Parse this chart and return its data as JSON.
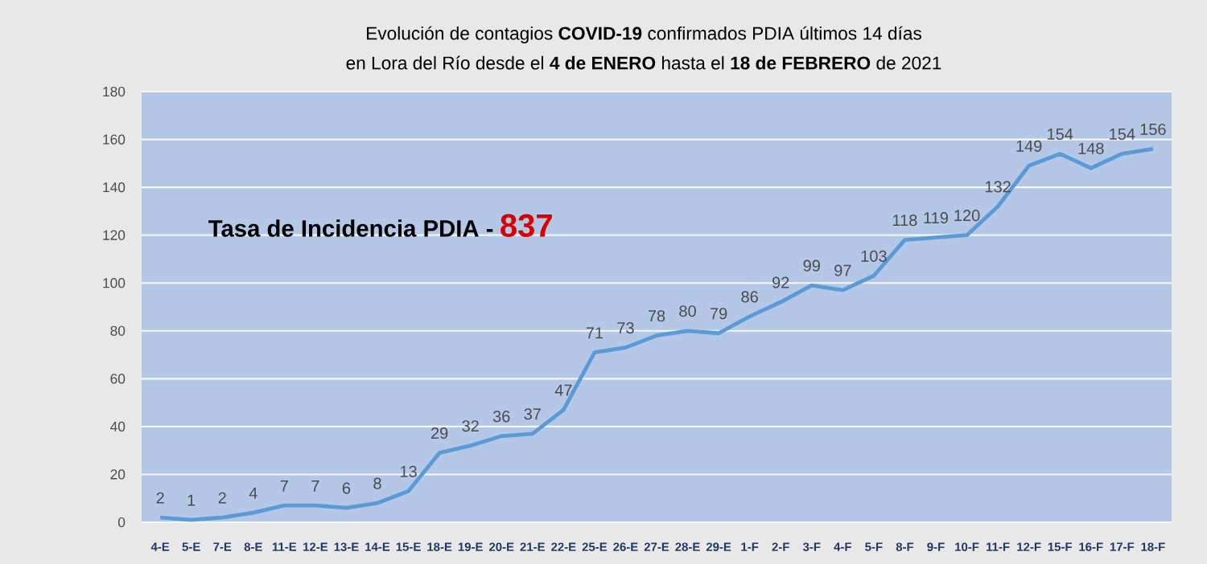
{
  "chart_data": {
    "type": "line",
    "title": "Evolución de contagios **COVID-19** confirmados PDIA  últimos 14 días",
    "subtitle": "en Lora del Río desde el **4 de ENERO** hasta el **18 de FEBRERO** de 2021",
    "annotations": [
      "Tasa de Incidencia PDIA -",
      "837"
    ],
    "categories": [
      "4-E",
      "5-E",
      "7-E",
      "8-E",
      "11-E",
      "12-E",
      "13-E",
      "14-E",
      "15-E",
      "18-E",
      "19-E",
      "20-E",
      "21-E",
      "22-E",
      "25-E",
      "26-E",
      "27-E",
      "28-E",
      "29-E",
      "1-F",
      "2-F",
      "3-F",
      "4-F",
      "5-F",
      "8-F",
      "9-F",
      "10-F",
      "11-F",
      "12-F",
      "15-F",
      "16-F",
      "17-F",
      "18-F"
    ],
    "values": [
      2,
      1,
      2,
      4,
      7,
      7,
      6,
      8,
      13,
      29,
      32,
      36,
      37,
      47,
      71,
      73,
      78,
      80,
      79,
      86,
      92,
      99,
      97,
      103,
      118,
      119,
      120,
      132,
      149,
      154,
      148,
      154,
      156
    ],
    "color": "#5b9bd5",
    "ylim": [
      0,
      180
    ],
    "yticks": [
      0,
      20,
      40,
      60,
      80,
      100,
      120,
      140,
      160,
      180
    ],
    "grid": "y",
    "data_labels": true,
    "marker": "none",
    "line_style": "solid"
  }
}
